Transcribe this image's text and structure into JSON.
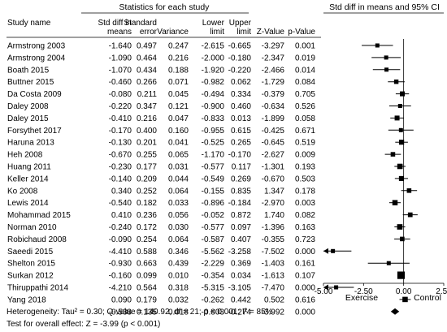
{
  "chart_data": {
    "type": "forest",
    "group_header": "Statistics for each study",
    "plot_header": "Std diff in means and 95% CI",
    "columns": [
      {
        "key": "study",
        "lines": [
          "Study name",
          ""
        ]
      },
      {
        "key": "smd",
        "lines": [
          "Std diff in",
          "means"
        ]
      },
      {
        "key": "se",
        "lines": [
          "Standard",
          "error"
        ]
      },
      {
        "key": "var",
        "lines": [
          "",
          "Variance"
        ]
      },
      {
        "key": "lower",
        "lines": [
          "Lower",
          "limit"
        ]
      },
      {
        "key": "upper",
        "lines": [
          "Upper",
          "limit"
        ]
      },
      {
        "key": "z",
        "lines": [
          "",
          "Z-Value"
        ]
      },
      {
        "key": "p",
        "lines": [
          "",
          "p-Value"
        ]
      }
    ],
    "studies": [
      {
        "study": "Armstrong 2003",
        "smd": "-1.640",
        "se": "0.497",
        "var": "0.247",
        "lower": "-2.615",
        "upper": "-0.665",
        "z": "-3.297",
        "p": "0.001"
      },
      {
        "study": "Armstrong 2004",
        "smd": "-1.090",
        "se": "0.464",
        "var": "0.216",
        "lower": "-2.000",
        "upper": "-0.180",
        "z": "-2.347",
        "p": "0.019"
      },
      {
        "study": "Boath 2015",
        "smd": "-1.070",
        "se": "0.434",
        "var": "0.188",
        "lower": "-1.920",
        "upper": "-0.220",
        "z": "-2.466",
        "p": "0.014"
      },
      {
        "study": "Buttner 2015",
        "smd": "-0.460",
        "se": "0.266",
        "var": "0.071",
        "lower": "-0.982",
        "upper": "0.062",
        "z": "-1.729",
        "p": "0.084"
      },
      {
        "study": "Da Costa 2009",
        "smd": "-0.080",
        "se": "0.211",
        "var": "0.045",
        "lower": "-0.494",
        "upper": "0.334",
        "z": "-0.379",
        "p": "0.705"
      },
      {
        "study": "Daley 2008",
        "smd": "-0.220",
        "se": "0.347",
        "var": "0.121",
        "lower": "-0.900",
        "upper": "0.460",
        "z": "-0.634",
        "p": "0.526"
      },
      {
        "study": "Daley 2015",
        "smd": "-0.410",
        "se": "0.216",
        "var": "0.047",
        "lower": "-0.833",
        "upper": "0.013",
        "z": "-1.899",
        "p": "0.058"
      },
      {
        "study": "Forsythet 2017",
        "smd": "-0.170",
        "se": "0.400",
        "var": "0.160",
        "lower": "-0.955",
        "upper": "0.615",
        "z": "-0.425",
        "p": "0.671"
      },
      {
        "study": "Haruna 2013",
        "smd": "-0.130",
        "se": "0.201",
        "var": "0.041",
        "lower": "-0.525",
        "upper": "0.265",
        "z": "-0.645",
        "p": "0.519"
      },
      {
        "study": "Heh 2008",
        "smd": "-0.670",
        "se": "0.255",
        "var": "0.065",
        "lower": "-1.170",
        "upper": "-0.170",
        "z": "-2.627",
        "p": "0.009"
      },
      {
        "study": "Huang 2011",
        "smd": "-0.230",
        "se": "0.177",
        "var": "0.031",
        "lower": "-0.577",
        "upper": "0.117",
        "z": "-1.301",
        "p": "0.193"
      },
      {
        "study": "Keller 2014",
        "smd": "-0.140",
        "se": "0.209",
        "var": "0.044",
        "lower": "-0.549",
        "upper": "0.269",
        "z": "-0.670",
        "p": "0.503"
      },
      {
        "study": "Ko 2008",
        "smd": "0.340",
        "se": "0.252",
        "var": "0.064",
        "lower": "-0.155",
        "upper": "0.835",
        "z": "1.347",
        "p": "0.178"
      },
      {
        "study": "Lewis 2014",
        "smd": "-0.540",
        "se": "0.182",
        "var": "0.033",
        "lower": "-0.896",
        "upper": "-0.184",
        "z": "-2.970",
        "p": "0.003"
      },
      {
        "study": "Mohammad 2015",
        "smd": "0.410",
        "se": "0.236",
        "var": "0.056",
        "lower": "-0.052",
        "upper": "0.872",
        "z": "1.740",
        "p": "0.082"
      },
      {
        "study": "Norman 2010",
        "smd": "-0.240",
        "se": "0.172",
        "var": "0.030",
        "lower": "-0.577",
        "upper": "0.097",
        "z": "-1.396",
        "p": "0.163"
      },
      {
        "study": "Robichaud 2008",
        "smd": "-0.090",
        "se": "0.254",
        "var": "0.064",
        "lower": "-0.587",
        "upper": "0.407",
        "z": "-0.355",
        "p": "0.723"
      },
      {
        "study": "Saeedi 2015",
        "smd": "-4.410",
        "se": "0.588",
        "var": "0.346",
        "lower": "-5.562",
        "upper": "-3.258",
        "z": "-7.502",
        "p": "0.000"
      },
      {
        "study": "Shelton 2015",
        "smd": "-0.930",
        "se": "0.663",
        "var": "0.439",
        "lower": "-2.229",
        "upper": "0.369",
        "z": "-1.403",
        "p": "0.161"
      },
      {
        "study": "Surkan 2012",
        "smd": "-0.160",
        "se": "0.099",
        "var": "0.010",
        "lower": "-0.354",
        "upper": "0.034",
        "z": "-1.613",
        "p": "0.107"
      },
      {
        "study": "Thiruppathi 2014",
        "smd": "-4.210",
        "se": "0.564",
        "var": "0.318",
        "lower": "-5.315",
        "upper": "-3.105",
        "z": "-7.470",
        "p": "0.000"
      },
      {
        "study": "Yang 2018",
        "smd": "0.090",
        "se": "0.179",
        "var": "0.032",
        "lower": "-0.262",
        "upper": "0.442",
        "z": "0.502",
        "p": "0.616"
      }
    ],
    "pooled": {
      "study": "",
      "smd": "-0.538",
      "se": "0.135",
      "var": "0.018",
      "lower": "-0.803",
      "upper": "-0.274",
      "z": "-3.992",
      "p": "0.000"
    },
    "x_axis": {
      "min": -5.0,
      "max": 2.5,
      "ticks": [
        "-5.00",
        "-2.50",
        "0.00",
        "2.50"
      ],
      "tick_values": [
        -5.0,
        -2.5,
        0.0,
        2.5
      ]
    },
    "axis_labels": {
      "left": "Exercise",
      "right": "Control"
    },
    "footnotes": {
      "heterogeneity": "Heterogeneity: Tau² = 0.30; Q-value = 140.92, df = 21; p < 0.001; I² = 85%",
      "overall": "Test for overall effect: Z = -3.99 (p < 0.001)"
    }
  }
}
